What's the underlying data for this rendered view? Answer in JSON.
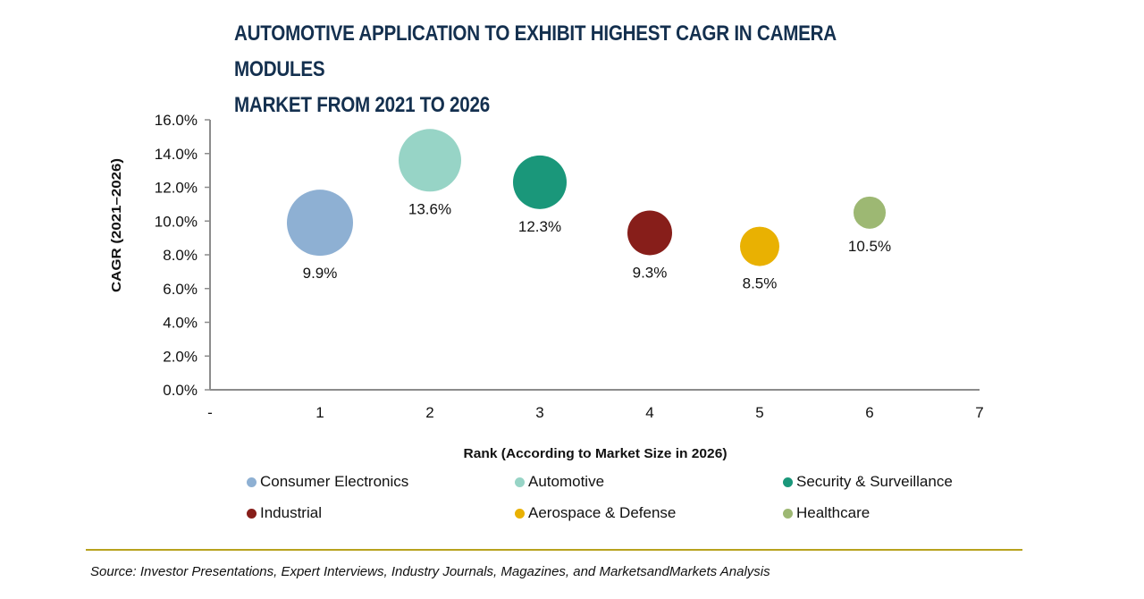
{
  "chart_data": {
    "type": "scatter",
    "subtype": "bubble",
    "title": "AUTOMOTIVE APPLICATION TO EXHIBIT HIGHEST CAGR IN CAMERA MODULES MARKET FROM 2021 TO 2026",
    "title_lines": [
      "AUTOMOTIVE APPLICATION TO EXHIBIT HIGHEST CAGR IN CAMERA MODULES",
      "MARKET FROM 2021 TO 2026"
    ],
    "xlabel": "Rank (According to Market Size in 2026)",
    "ylabel": "CAGR (2021–2026)",
    "xlim": [
      0,
      7
    ],
    "ylim": [
      0,
      16
    ],
    "x_ticks": [
      "-",
      "1",
      "2",
      "3",
      "4",
      "5",
      "6",
      "7"
    ],
    "y_ticks": [
      "0.0%",
      "2.0%",
      "4.0%",
      "6.0%",
      "8.0%",
      "10.0%",
      "12.0%",
      "14.0%",
      "16.0%"
    ],
    "grid": false,
    "legend_position": "bottom",
    "series": [
      {
        "name": "Consumer Electronics",
        "x": 1,
        "y": 9.9,
        "label": "9.9%",
        "size_rank": 1,
        "color": "#8eb0d3"
      },
      {
        "name": "Automotive",
        "x": 2,
        "y": 13.6,
        "label": "13.6%",
        "size_rank": 2,
        "color": "#97d4c6"
      },
      {
        "name": "Security & Surveillance",
        "x": 3,
        "y": 12.3,
        "label": "12.3%",
        "size_rank": 3,
        "color": "#1a977a"
      },
      {
        "name": "Industrial",
        "x": 4,
        "y": 9.3,
        "label": "9.3%",
        "size_rank": 4,
        "color": "#871e1a"
      },
      {
        "name": "Aerospace & Defense",
        "x": 5,
        "y": 8.5,
        "label": "8.5%",
        "size_rank": 5,
        "color": "#e9b102"
      },
      {
        "name": "Healthcare",
        "x": 6,
        "y": 10.5,
        "label": "10.5%",
        "size_rank": 6,
        "color": "#9db873"
      }
    ]
  },
  "source": "Source: Investor Presentations, Expert Interviews, Industry Journals, Magazines, and MarketsandMarkets Analysis"
}
